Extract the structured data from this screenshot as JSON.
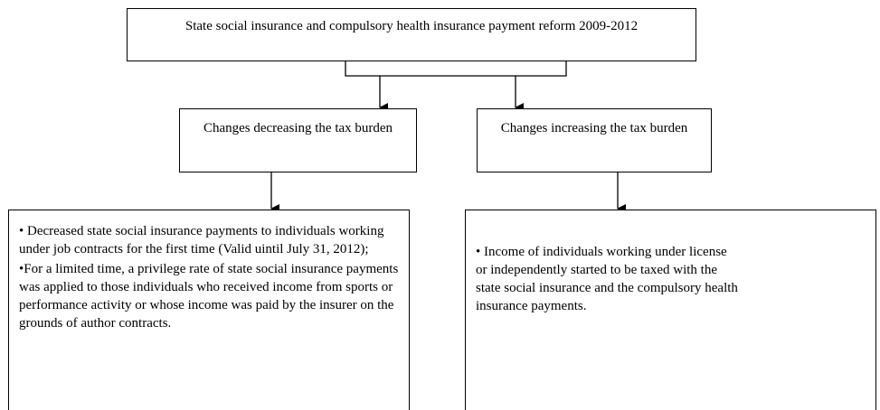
{
  "title": "State social insurance and compulsory health insurance payment reform 2009-2012",
  "branches": [
    {
      "label": "Changes decreasing the tax burden",
      "items": [
        "• Decreased state social insurance payments to individuals working under job contracts for the first time (Valid uintil July 31, 2012);",
        "•For a limited time, a privilege rate of state social insurance payments was applied to those individuals who received income from sports or performance activity or whose income was paid by the insurer on the grounds of author contracts."
      ]
    },
    {
      "label": "Changes increasing the tax burden",
      "items": [
        "• Income of individuals working under license or independently started to be taxed with the state social insurance and the compulsory health insurance payments."
      ]
    }
  ]
}
